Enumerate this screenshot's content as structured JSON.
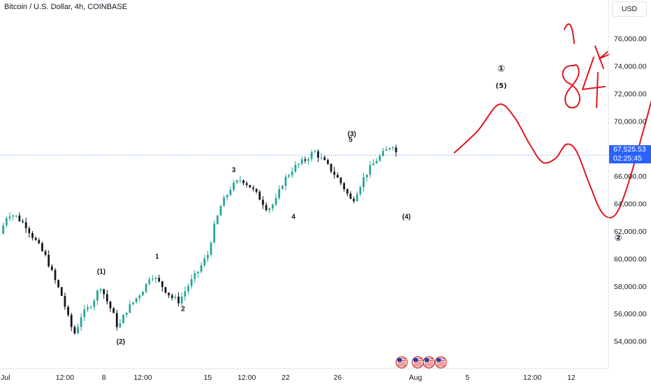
{
  "header": {
    "title": "Bitcoin / U.S. Dollar, 4h, COINBASE",
    "currency": "USD"
  },
  "last_price": {
    "value": 67525.53,
    "label": "67,525.53",
    "countdown": "02:25:45"
  },
  "colors": {
    "up": "#26a69a",
    "down": "#131722",
    "drawing": "#e0161c",
    "last_price": "#2962ff",
    "grid": "#f0f3fa",
    "axis_text": "#131722"
  },
  "event_icons": [
    "us-flag-icon",
    "us-flag-icon",
    "us-flag-icon",
    "us-flag-icon",
    "us-flag-icon"
  ],
  "chart_data": {
    "type": "candlestick",
    "symbol": "Bitcoin / U.S. Dollar",
    "interval": "4h",
    "exchange": "COINBASE",
    "x_ticks": [
      {
        "label": "Jul",
        "day": 0
      },
      {
        "label": "12:00",
        "day": 2.5
      },
      {
        "label": "8",
        "day": 4
      },
      {
        "label": "12:00",
        "day": 5.5
      },
      {
        "label": "15",
        "day": 8
      },
      {
        "label": "12:00",
        "day": 9.5
      },
      {
        "label": "22",
        "day": 11
      },
      {
        "label": "26",
        "day": 13
      },
      {
        "label": "Aug",
        "day": 16
      },
      {
        "label": "5",
        "day": 18
      },
      {
        "label": "12:00",
        "day": 20.5
      },
      {
        "label": "12",
        "day": 22
      }
    ],
    "y_ticks": [
      54000,
      56000,
      58000,
      60000,
      62000,
      64000,
      66000,
      68000,
      70000,
      72000,
      74000,
      76000
    ],
    "y_tick_labels": [
      "54,000.00",
      "56,000.00",
      "58,000.00",
      "60,000.00",
      "62,000.00",
      "64,000.00",
      "66,000.00",
      "68,000.00",
      "70,000.00",
      "72,000.00",
      "74,000.00",
      "76,000.00"
    ],
    "ylim": [
      52000,
      78800
    ],
    "xlim": [
      0,
      23.4
    ],
    "grid": false,
    "price_path": [
      {
        "day": 0.0,
        "price": 61800
      },
      {
        "day": 0.3,
        "price": 63300
      },
      {
        "day": 0.6,
        "price": 63100
      },
      {
        "day": 1.0,
        "price": 62400
      },
      {
        "day": 1.4,
        "price": 61200
      },
      {
        "day": 1.8,
        "price": 60000
      },
      {
        "day": 2.1,
        "price": 58500
      },
      {
        "day": 2.4,
        "price": 57200
      },
      {
        "day": 2.7,
        "price": 55200
      },
      {
        "day": 2.9,
        "price": 54500
      },
      {
        "day": 3.1,
        "price": 55800
      },
      {
        "day": 3.4,
        "price": 56400
      },
      {
        "day": 3.7,
        "price": 57300
      },
      {
        "day": 3.85,
        "price": 58100
      },
      {
        "day": 4.1,
        "price": 57000
      },
      {
        "day": 4.35,
        "price": 56000
      },
      {
        "day": 4.55,
        "price": 54900
      },
      {
        "day": 4.85,
        "price": 56200
      },
      {
        "day": 5.2,
        "price": 57000
      },
      {
        "day": 5.6,
        "price": 58000
      },
      {
        "day": 5.8,
        "price": 58900
      },
      {
        "day": 6.2,
        "price": 58100
      },
      {
        "day": 6.6,
        "price": 57200
      },
      {
        "day": 6.9,
        "price": 56900
      },
      {
        "day": 7.2,
        "price": 57900
      },
      {
        "day": 7.6,
        "price": 59000
      },
      {
        "day": 8.0,
        "price": 60300
      },
      {
        "day": 8.2,
        "price": 62000
      },
      {
        "day": 8.5,
        "price": 63800
      },
      {
        "day": 8.9,
        "price": 65200
      },
      {
        "day": 9.3,
        "price": 65800
      },
      {
        "day": 9.6,
        "price": 65300
      },
      {
        "day": 10.0,
        "price": 64400
      },
      {
        "day": 10.3,
        "price": 63600
      },
      {
        "day": 10.6,
        "price": 64100
      },
      {
        "day": 10.9,
        "price": 65600
      },
      {
        "day": 11.3,
        "price": 66600
      },
      {
        "day": 11.7,
        "price": 67100
      },
      {
        "day": 12.1,
        "price": 67800
      },
      {
        "day": 12.5,
        "price": 67000
      },
      {
        "day": 12.9,
        "price": 66100
      },
      {
        "day": 13.2,
        "price": 65300
      },
      {
        "day": 13.55,
        "price": 64100
      },
      {
        "day": 13.8,
        "price": 65100
      },
      {
        "day": 14.1,
        "price": 66200
      },
      {
        "day": 14.5,
        "price": 67200
      },
      {
        "day": 14.9,
        "price": 67900
      },
      {
        "day": 15.1,
        "price": 68400
      },
      {
        "day": 15.3,
        "price": 67500
      }
    ],
    "wave_labels": [
      {
        "text": "(1)",
        "day": 3.9,
        "price": 58900
      },
      {
        "text": "1",
        "day": 6.05,
        "price": 60000
      },
      {
        "text": "(2)",
        "day": 4.65,
        "price": 53800
      },
      {
        "text": "2",
        "day": 7.05,
        "price": 56200
      },
      {
        "text": "3",
        "day": 9.0,
        "price": 66300
      },
      {
        "text": "4",
        "day": 11.3,
        "price": 62900
      },
      {
        "text": "(3)",
        "day": 13.55,
        "price": 68900
      },
      {
        "text": "5",
        "day": 13.5,
        "price": 68500
      },
      {
        "text": "(4)",
        "day": 15.65,
        "price": 62900
      }
    ],
    "projection_labels": [
      {
        "text": "①",
        "day": 19.3,
        "price": 73600
      },
      {
        "text": "(5)",
        "day": 19.3,
        "price": 72400
      },
      {
        "text": "②",
        "day": 23.8,
        "price": 61300
      }
    ],
    "annotation": {
      "text": "84K"
    },
    "projection_path": [
      {
        "day": 17.5,
        "price": 67700
      },
      {
        "day": 18.4,
        "price": 69300
      },
      {
        "day": 19.2,
        "price": 71200
      },
      {
        "day": 19.8,
        "price": 70300
      },
      {
        "day": 20.4,
        "price": 68300
      },
      {
        "day": 20.9,
        "price": 67000
      },
      {
        "day": 21.4,
        "price": 67300
      },
      {
        "day": 21.8,
        "price": 68300
      },
      {
        "day": 22.2,
        "price": 67800
      },
      {
        "day": 22.7,
        "price": 65400
      },
      {
        "day": 23.2,
        "price": 63300
      },
      {
        "day": 23.7,
        "price": 63200
      },
      {
        "day": 24.2,
        "price": 65500
      },
      {
        "day": 24.8,
        "price": 69500
      },
      {
        "day": 25.4,
        "price": 73500
      },
      {
        "day": 26.0,
        "price": 76300
      },
      {
        "day": 26.5,
        "price": 76800
      }
    ]
  }
}
